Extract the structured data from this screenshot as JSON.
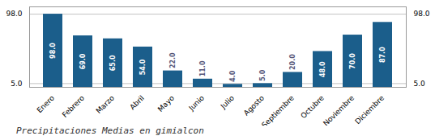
{
  "chart_data": {
    "type": "bar",
    "title": "Precipitaciones Medias en gimialcon",
    "categories": [
      "Enero",
      "Febrero",
      "Marzo",
      "Abril",
      "Mayo",
      "Junio",
      "Julio",
      "Agosto",
      "Septiembre",
      "Octubre",
      "Noviembre",
      "Diciembre"
    ],
    "values": [
      98.0,
      69.0,
      65.0,
      54.0,
      22.0,
      11.0,
      4.0,
      5.0,
      20.0,
      48.0,
      70.0,
      87.0
    ],
    "value_labels": [
      "98.0",
      "69.0",
      "65.0",
      "54.0",
      "22.0",
      "11.0",
      "4.0",
      "5.0",
      "20.0",
      "48.0",
      "70.0",
      "87.0"
    ],
    "color": "#1b5e8b",
    "ylim": [
      0,
      107.8
    ],
    "yticks": [
      {
        "value": 5.0,
        "label": "5.0"
      },
      {
        "value": 98.0,
        "label": "98.0"
      }
    ],
    "grid": true,
    "data_labels": true
  }
}
